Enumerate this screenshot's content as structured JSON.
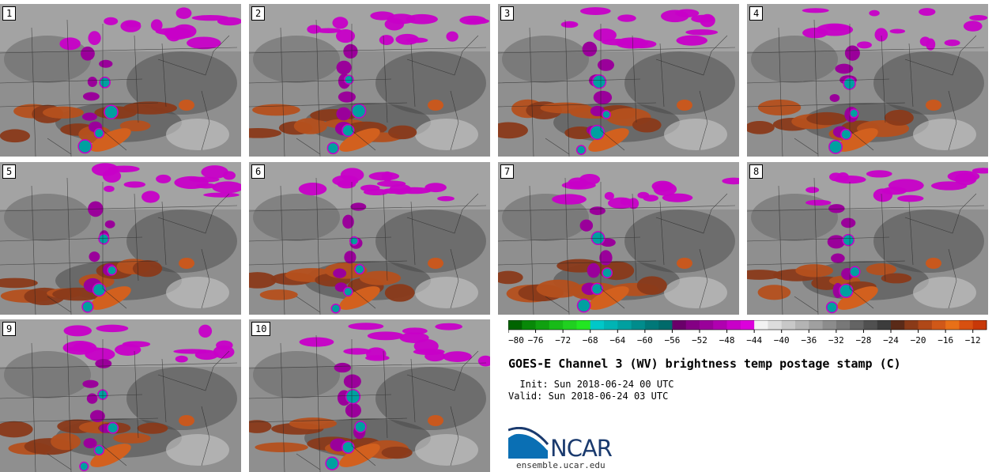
{
  "panels": [
    {
      "label": "1"
    },
    {
      "label": "2"
    },
    {
      "label": "3"
    },
    {
      "label": "4"
    },
    {
      "label": "5"
    },
    {
      "label": "6"
    },
    {
      "label": "7"
    },
    {
      "label": "8"
    },
    {
      "label": "9"
    },
    {
      "label": "10"
    }
  ],
  "colorbar": {
    "colors": [
      "#006400",
      "#088808",
      "#10a010",
      "#18bb18",
      "#20d020",
      "#22e622",
      "#00c8c8",
      "#00b4b4",
      "#00a0a0",
      "#008c8c",
      "#007878",
      "#006a6a",
      "#6a006a",
      "#840084",
      "#9a009a",
      "#b000b0",
      "#c800c8",
      "#dc00dc",
      "#f2f2f2",
      "#dcdcdc",
      "#c8c8c8",
      "#b4b4b4",
      "#a0a0a0",
      "#8c8c8c",
      "#787878",
      "#646464",
      "#505050",
      "#3c3c3c",
      "#5a2a18",
      "#8a3a18",
      "#b04818",
      "#d05818",
      "#e87018",
      "#d85010",
      "#c83808"
    ],
    "ticks": [
      "−80",
      "−76",
      "−72",
      "−68",
      "−64",
      "−60",
      "−56",
      "−52",
      "−48",
      "−44",
      "−40",
      "−36",
      "−32",
      "−28",
      "−24",
      "−20",
      "−16",
      "−12"
    ]
  },
  "title": "GOES-E Channel 3 (WV) brightness temp postage stamp (C)",
  "init": "  Init: Sun 2018-06-24 00 UTC",
  "valid": "Valid: Sun 2018-06-24 03 UTC",
  "logo": {
    "text": "NCAR",
    "site": "ensemble.ucar.edu",
    "colors": {
      "blue": "#0a6fb4",
      "navy": "#1a3a6e"
    }
  }
}
